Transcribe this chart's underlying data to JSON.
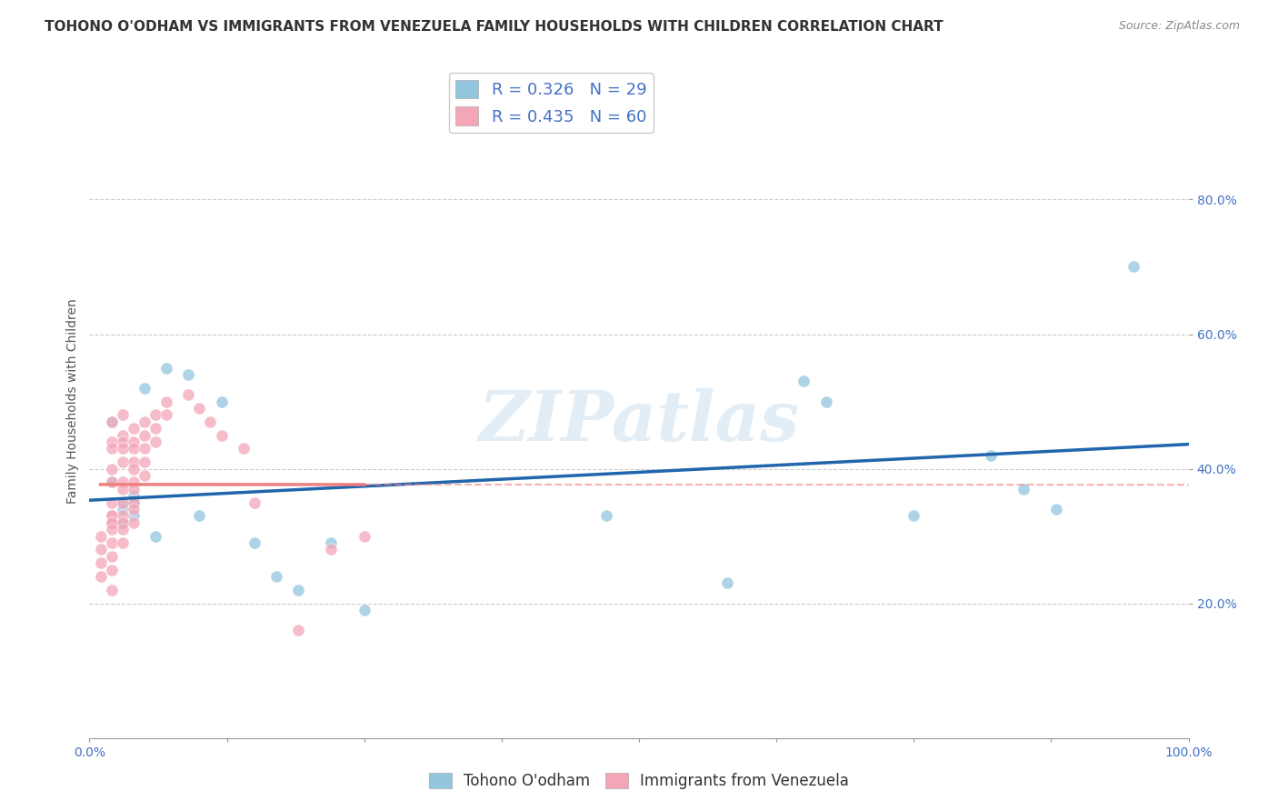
{
  "title": "TOHONO O'ODHAM VS IMMIGRANTS FROM VENEZUELA FAMILY HOUSEHOLDS WITH CHILDREN CORRELATION CHART",
  "source": "Source: ZipAtlas.com",
  "ylabel": "Family Households with Children",
  "R1": 0.326,
  "N1": 29,
  "R2": 0.435,
  "N2": 60,
  "color1": "#92c5de",
  "color2": "#f4a6b8",
  "trendline1_color": "#2166ac",
  "trendline2_color": "#f08080",
  "trendline2_dashed_color": "#f08080",
  "xlim": [
    0.0,
    1.0
  ],
  "ylim": [
    0.0,
    1.0
  ],
  "xticks": [
    0.0,
    0.125,
    0.25,
    0.375,
    0.5,
    0.625,
    0.75,
    0.875,
    1.0
  ],
  "yticks": [
    0.2,
    0.4,
    0.6,
    0.8
  ],
  "ytick_labels": [
    "20.0%",
    "40.0%",
    "60.0%",
    "80.0%"
  ],
  "legend_label1": "Tohono O'odham",
  "legend_label2": "Immigrants from Venezuela",
  "watermark": "ZIPatlas",
  "blue_points": [
    [
      0.02,
      0.47
    ],
    [
      0.02,
      0.38
    ],
    [
      0.03,
      0.35
    ],
    [
      0.03,
      0.32
    ],
    [
      0.03,
      0.32
    ],
    [
      0.03,
      0.34
    ],
    [
      0.04,
      0.36
    ],
    [
      0.04,
      0.35
    ],
    [
      0.04,
      0.33
    ],
    [
      0.05,
      0.52
    ],
    [
      0.06,
      0.3
    ],
    [
      0.07,
      0.55
    ],
    [
      0.09,
      0.54
    ],
    [
      0.1,
      0.33
    ],
    [
      0.12,
      0.5
    ],
    [
      0.15,
      0.29
    ],
    [
      0.17,
      0.24
    ],
    [
      0.19,
      0.22
    ],
    [
      0.22,
      0.29
    ],
    [
      0.25,
      0.19
    ],
    [
      0.47,
      0.33
    ],
    [
      0.58,
      0.23
    ],
    [
      0.65,
      0.53
    ],
    [
      0.67,
      0.5
    ],
    [
      0.75,
      0.33
    ],
    [
      0.82,
      0.42
    ],
    [
      0.85,
      0.37
    ],
    [
      0.88,
      0.34
    ],
    [
      0.95,
      0.7
    ]
  ],
  "pink_points": [
    [
      0.01,
      0.3
    ],
    [
      0.01,
      0.28
    ],
    [
      0.01,
      0.26
    ],
    [
      0.01,
      0.24
    ],
    [
      0.02,
      0.47
    ],
    [
      0.02,
      0.44
    ],
    [
      0.02,
      0.43
    ],
    [
      0.02,
      0.4
    ],
    [
      0.02,
      0.38
    ],
    [
      0.02,
      0.35
    ],
    [
      0.02,
      0.33
    ],
    [
      0.02,
      0.33
    ],
    [
      0.02,
      0.32
    ],
    [
      0.02,
      0.32
    ],
    [
      0.02,
      0.31
    ],
    [
      0.02,
      0.29
    ],
    [
      0.02,
      0.27
    ],
    [
      0.02,
      0.25
    ],
    [
      0.02,
      0.22
    ],
    [
      0.03,
      0.48
    ],
    [
      0.03,
      0.45
    ],
    [
      0.03,
      0.44
    ],
    [
      0.03,
      0.43
    ],
    [
      0.03,
      0.41
    ],
    [
      0.03,
      0.38
    ],
    [
      0.03,
      0.37
    ],
    [
      0.03,
      0.35
    ],
    [
      0.03,
      0.33
    ],
    [
      0.03,
      0.32
    ],
    [
      0.03,
      0.31
    ],
    [
      0.03,
      0.29
    ],
    [
      0.04,
      0.46
    ],
    [
      0.04,
      0.44
    ],
    [
      0.04,
      0.43
    ],
    [
      0.04,
      0.41
    ],
    [
      0.04,
      0.4
    ],
    [
      0.04,
      0.38
    ],
    [
      0.04,
      0.37
    ],
    [
      0.04,
      0.35
    ],
    [
      0.04,
      0.34
    ],
    [
      0.04,
      0.32
    ],
    [
      0.05,
      0.47
    ],
    [
      0.05,
      0.45
    ],
    [
      0.05,
      0.43
    ],
    [
      0.05,
      0.41
    ],
    [
      0.05,
      0.39
    ],
    [
      0.06,
      0.48
    ],
    [
      0.06,
      0.46
    ],
    [
      0.06,
      0.44
    ],
    [
      0.07,
      0.5
    ],
    [
      0.07,
      0.48
    ],
    [
      0.09,
      0.51
    ],
    [
      0.1,
      0.49
    ],
    [
      0.11,
      0.47
    ],
    [
      0.12,
      0.45
    ],
    [
      0.14,
      0.43
    ],
    [
      0.15,
      0.35
    ],
    [
      0.19,
      0.16
    ],
    [
      0.22,
      0.28
    ],
    [
      0.25,
      0.3
    ]
  ],
  "background_color": "#ffffff",
  "grid_color": "#cccccc",
  "title_fontsize": 11,
  "axis_label_fontsize": 10,
  "tick_fontsize": 10,
  "legend_fontsize": 12
}
